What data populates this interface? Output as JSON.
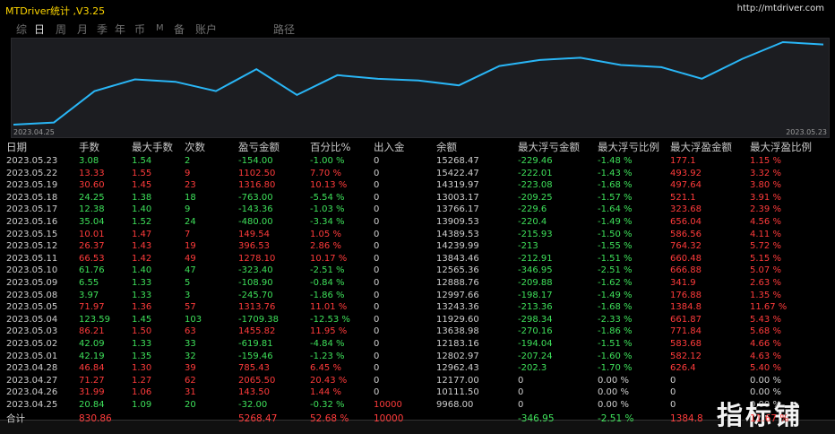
{
  "window": {
    "title": "MTDriver统计 ,V3.25",
    "url": "http://mtdriver.com"
  },
  "tabs": [
    "综",
    "日",
    "周",
    "月",
    "季",
    "年",
    "币",
    "M",
    "备",
    "账户",
    "路径"
  ],
  "active_tab": 1,
  "chart_data": {
    "type": "line",
    "x": [
      "2023.04.25",
      "2023.04.26",
      "2023.04.27",
      "2023.04.28",
      "2023.05.01",
      "2023.05.02",
      "2023.05.03",
      "2023.05.04",
      "2023.05.05",
      "2023.05.08",
      "2023.05.09",
      "2023.05.10",
      "2023.05.11",
      "2023.05.12",
      "2023.05.15",
      "2023.05.16",
      "2023.05.17",
      "2023.05.18",
      "2023.05.19",
      "2023.05.22",
      "2023.05.23"
    ],
    "series": [
      {
        "values": [
          9968.0,
          10111.5,
          12177.0,
          12962.43,
          12802.97,
          12183.16,
          13638.98,
          11929.6,
          13243.36,
          12997.66,
          12888.76,
          12565.36,
          13843.46,
          14239.99,
          14389.53,
          13909.53,
          13766.17,
          13003.17,
          14319.97,
          15422.47,
          15268.47
        ]
      }
    ],
    "x_first_label": "2023.04.25",
    "x_last_label": "2023.05.23",
    "color": "#29b6f6"
  },
  "table": {
    "headers": [
      "日期",
      "手数",
      "最大手数",
      "次数",
      "盈亏金额",
      "百分比%",
      "出入金",
      "余额",
      "最大浮亏金额",
      "最大浮亏比例",
      "最大浮盈金额",
      "最大浮盈比例"
    ],
    "rows": [
      [
        "2023.05.23",
        "3.08",
        "1.54",
        "2",
        "-154.00",
        "-1.00 %",
        "0",
        "15268.47",
        "-229.46",
        "-1.48 %",
        "177.1",
        "1.15 %"
      ],
      [
        "2023.05.22",
        "13.33",
        "1.55",
        "9",
        "1102.50",
        "7.70 %",
        "0",
        "15422.47",
        "-222.01",
        "-1.43 %",
        "493.92",
        "3.32 %"
      ],
      [
        "2023.05.19",
        "30.60",
        "1.45",
        "23",
        "1316.80",
        "10.13 %",
        "0",
        "14319.97",
        "-223.08",
        "-1.68 %",
        "497.64",
        "3.80 %"
      ],
      [
        "2023.05.18",
        "24.25",
        "1.38",
        "18",
        "-763.00",
        "-5.54 %",
        "0",
        "13003.17",
        "-209.25",
        "-1.57 %",
        "521.1",
        "3.91 %"
      ],
      [
        "2023.05.17",
        "12.38",
        "1.40",
        "9",
        "-143.36",
        "-1.03 %",
        "0",
        "13766.17",
        "-229.6",
        "-1.64 %",
        "323.68",
        "2.39 %"
      ],
      [
        "2023.05.16",
        "35.04",
        "1.52",
        "24",
        "-480.00",
        "-3.34 %",
        "0",
        "13909.53",
        "-220.4",
        "-1.49 %",
        "656.04",
        "4.56 %"
      ],
      [
        "2023.05.15",
        "10.01",
        "1.47",
        "7",
        "149.54",
        "1.05 %",
        "0",
        "14389.53",
        "-215.93",
        "-1.50 %",
        "586.56",
        "4.11 %"
      ],
      [
        "2023.05.12",
        "26.37",
        "1.43",
        "19",
        "396.53",
        "2.86 %",
        "0",
        "14239.99",
        "-213",
        "-1.55 %",
        "764.32",
        "5.72 %"
      ],
      [
        "2023.05.11",
        "66.53",
        "1.42",
        "49",
        "1278.10",
        "10.17 %",
        "0",
        "13843.46",
        "-212.91",
        "-1.51 %",
        "660.48",
        "5.15 %"
      ],
      [
        "2023.05.10",
        "61.76",
        "1.40",
        "47",
        "-323.40",
        "-2.51 %",
        "0",
        "12565.36",
        "-346.95",
        "-2.51 %",
        "666.88",
        "5.07 %"
      ],
      [
        "2023.05.09",
        "6.55",
        "1.33",
        "5",
        "-108.90",
        "-0.84 %",
        "0",
        "12888.76",
        "-209.88",
        "-1.62 %",
        "341.9",
        "2.63 %"
      ],
      [
        "2023.05.08",
        "3.97",
        "1.33",
        "3",
        "-245.70",
        "-1.86 %",
        "0",
        "12997.66",
        "-198.17",
        "-1.49 %",
        "176.88",
        "1.35 %"
      ],
      [
        "2023.05.05",
        "71.97",
        "1.36",
        "57",
        "1313.76",
        "11.01 %",
        "0",
        "13243.36",
        "-213.36",
        "-1.68 %",
        "1384.8",
        "11.67 %"
      ],
      [
        "2023.05.04",
        "123.59",
        "1.45",
        "103",
        "-1709.38",
        "-12.53 %",
        "0",
        "11929.60",
        "-298.34",
        "-2.33 %",
        "661.87",
        "5.43 %"
      ],
      [
        "2023.05.03",
        "86.21",
        "1.50",
        "63",
        "1455.82",
        "11.95 %",
        "0",
        "13638.98",
        "-270.16",
        "-1.86 %",
        "771.84",
        "5.68 %"
      ],
      [
        "2023.05.02",
        "42.09",
        "1.33",
        "33",
        "-619.81",
        "-4.84 %",
        "0",
        "12183.16",
        "-194.04",
        "-1.51 %",
        "583.68",
        "4.66 %"
      ],
      [
        "2023.05.01",
        "42.19",
        "1.35",
        "32",
        "-159.46",
        "-1.23 %",
        "0",
        "12802.97",
        "-207.24",
        "-1.60 %",
        "582.12",
        "4.63 %"
      ],
      [
        "2023.04.28",
        "46.84",
        "1.30",
        "39",
        "785.43",
        "6.45 %",
        "0",
        "12962.43",
        "-202.3",
        "-1.70 %",
        "626.4",
        "5.40 %"
      ],
      [
        "2023.04.27",
        "71.27",
        "1.27",
        "62",
        "2065.50",
        "20.43 %",
        "0",
        "12177.00",
        "0",
        "0.00 %",
        "0",
        "0.00 %"
      ],
      [
        "2023.04.26",
        "31.99",
        "1.06",
        "31",
        "143.50",
        "1.44 %",
        "0",
        "10111.50",
        "0",
        "0.00 %",
        "0",
        "0.00 %"
      ],
      [
        "2023.04.25",
        "20.84",
        "1.09",
        "20",
        "-32.00",
        "-0.32 %",
        "10000",
        "9968.00",
        "0",
        "0.00 %",
        "0",
        "0.00 %"
      ]
    ],
    "summary": [
      "合计",
      "830.86",
      "",
      "",
      "5268.47",
      "52.68 %",
      "10000",
      "",
      "-346.95",
      "-2.51 %",
      "1384.8",
      "11.67 %"
    ]
  },
  "watermark": "指标铺",
  "colors": {
    "positive": "#ff3b3b",
    "negative": "#3ee05a",
    "accent": "#ffd700",
    "line": "#29b6f6"
  }
}
